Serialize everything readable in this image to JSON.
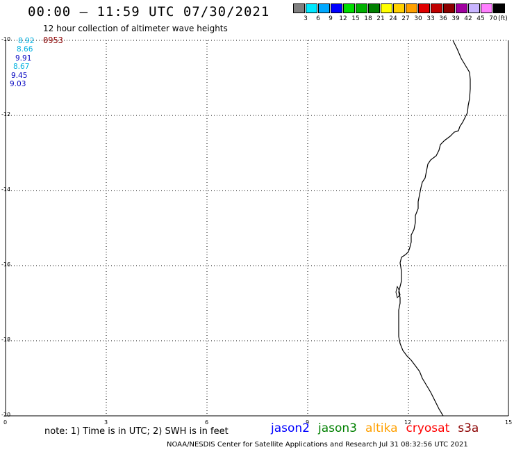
{
  "header": {
    "title": "00:00 – 11:59 UTC 07/30/2021",
    "subtitle": "12 hour collection of altimeter wave heights"
  },
  "scale": {
    "colors": [
      "#808080",
      "#00e8ff",
      "#00a8ff",
      "#0000ff",
      "#00dd00",
      "#00b000",
      "#008000",
      "#ffff00",
      "#ffd000",
      "#ffa000",
      "#e00000",
      "#c00000",
      "#8b0000",
      "#a000a0",
      "#c8b4ff",
      "#ff80ff",
      "#000000"
    ],
    "labels": [
      "3",
      "6",
      "9",
      "12",
      "15",
      "18",
      "21",
      "24",
      "27",
      "30",
      "33",
      "36",
      "39",
      "42",
      "45",
      "70"
    ],
    "unit": "(ft)"
  },
  "axes": {
    "y_labels": [
      "-10",
      "-12",
      "-14",
      "-16",
      "-18",
      "-20"
    ],
    "x_labels": [
      "0",
      "3",
      "6",
      "9",
      "12",
      "15"
    ]
  },
  "points": [
    {
      "value": "8.92",
      "color": "#00b0e0"
    },
    {
      "value": "8.66",
      "color": "#00b0e0"
    },
    {
      "value": "9.91",
      "color": "#0000c0"
    },
    {
      "value": "8.67",
      "color": "#00b0e0"
    },
    {
      "value": "9.45",
      "color": "#0000c0"
    },
    {
      "value": "9.03",
      "color": "#0000c0"
    }
  ],
  "time_marker": {
    "value": "0953",
    "color": "#8b0000"
  },
  "footer": {
    "note": "note:  1) Time is in UTC;  2) SWH is in feet",
    "satellites": [
      {
        "name": "jason2",
        "color": "#0000ff"
      },
      {
        "name": "jason3",
        "color": "#008000"
      },
      {
        "name": "altika",
        "color": "#ffa000"
      },
      {
        "name": "cryosat",
        "color": "#ff0000"
      },
      {
        "name": "s3a",
        "color": "#8b0000"
      }
    ],
    "credit": "NOAA/NESDIS Center for Satellite Applications and Research     Jul 31 08:32:56 UTC 2021"
  }
}
